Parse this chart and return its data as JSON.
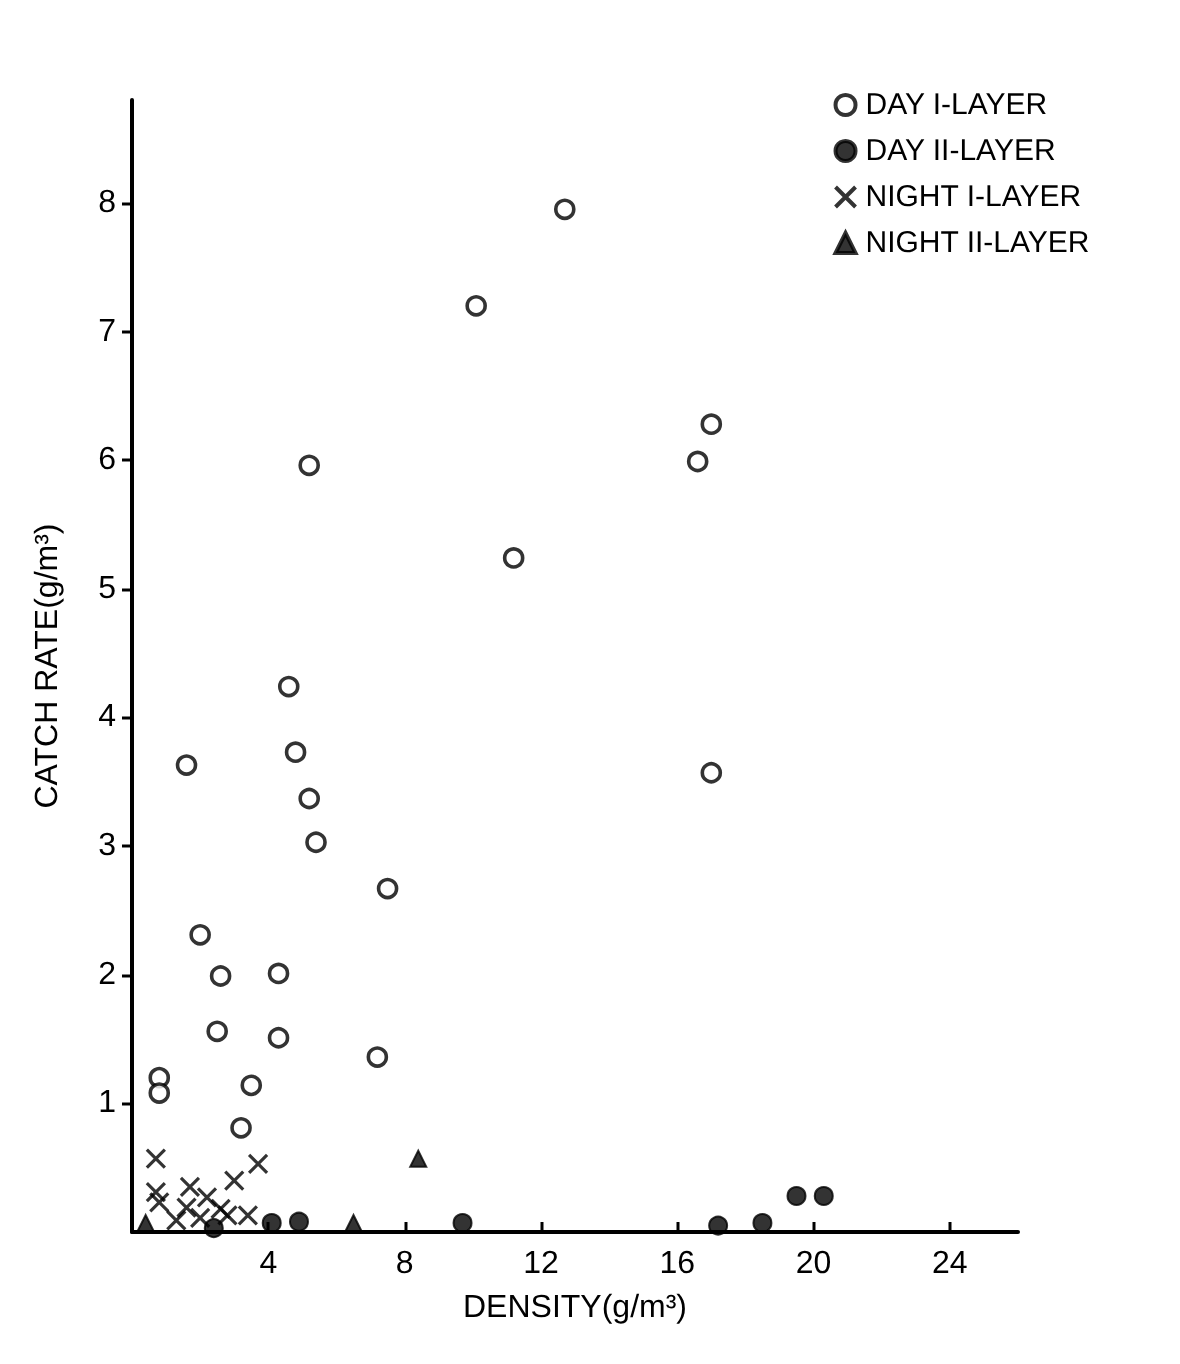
{
  "chart_data": {
    "type": "scatter",
    "xlabel": "DENSITY(g/m³)",
    "ylabel": "CATCH RATE(g/m³)",
    "xlim": [
      0,
      26
    ],
    "ylim": [
      0,
      8.8
    ],
    "xticks": [
      4,
      8,
      12,
      16,
      20,
      24
    ],
    "yticks": [
      1,
      2,
      3,
      4,
      5,
      6,
      7,
      8
    ],
    "grid": false,
    "legend": "top right",
    "series": [
      {
        "name": "DAY I-LAYER",
        "color": "#000000",
        "marker": "circle",
        "x": [
          10.1,
          12.7,
          5.2,
          11.2,
          4.6,
          4.8,
          1.6,
          5.2,
          5.4,
          17.0,
          16.6,
          17.0,
          7.5,
          2.0,
          2.6,
          4.3,
          2.5,
          4.3,
          7.2,
          0.8,
          0.8,
          3.5,
          3.2
        ],
        "values": [
          7.2,
          7.95,
          5.96,
          5.24,
          4.24,
          3.73,
          3.63,
          3.37,
          3.03,
          6.28,
          5.99,
          3.57,
          2.67,
          2.31,
          1.99,
          2.01,
          1.56,
          1.51,
          1.36,
          1.2,
          1.08,
          1.14,
          0.81
        ]
      },
      {
        "name": "DAY II-LAYER",
        "color": "#000000",
        "marker": "circle",
        "x": [
          2.4,
          4.1,
          4.9,
          9.7,
          17.2,
          18.5,
          19.5,
          20.3
        ],
        "values": [
          0.03,
          0.07,
          0.08,
          0.07,
          0.05,
          0.07,
          0.28,
          0.28
        ]
      },
      {
        "name": "NIGHT I-LAYER",
        "color": "#000000",
        "marker": "cross",
        "x": [
          0.7,
          0.7,
          0.8,
          1.3,
          1.7,
          1.6,
          2.2,
          2.0,
          2.6,
          2.8,
          3.0,
          3.4,
          3.7
        ],
        "values": [
          0.57,
          0.31,
          0.23,
          0.09,
          0.35,
          0.19,
          0.27,
          0.11,
          0.18,
          0.13,
          0.4,
          0.13,
          0.53
        ]
      },
      {
        "name": "NIGHT II-LAYER",
        "color": "#000000",
        "marker": "triangle",
        "x": [
          0.4,
          6.5,
          8.4
        ],
        "values": [
          0.07,
          0.07,
          0.57
        ]
      }
    ]
  }
}
